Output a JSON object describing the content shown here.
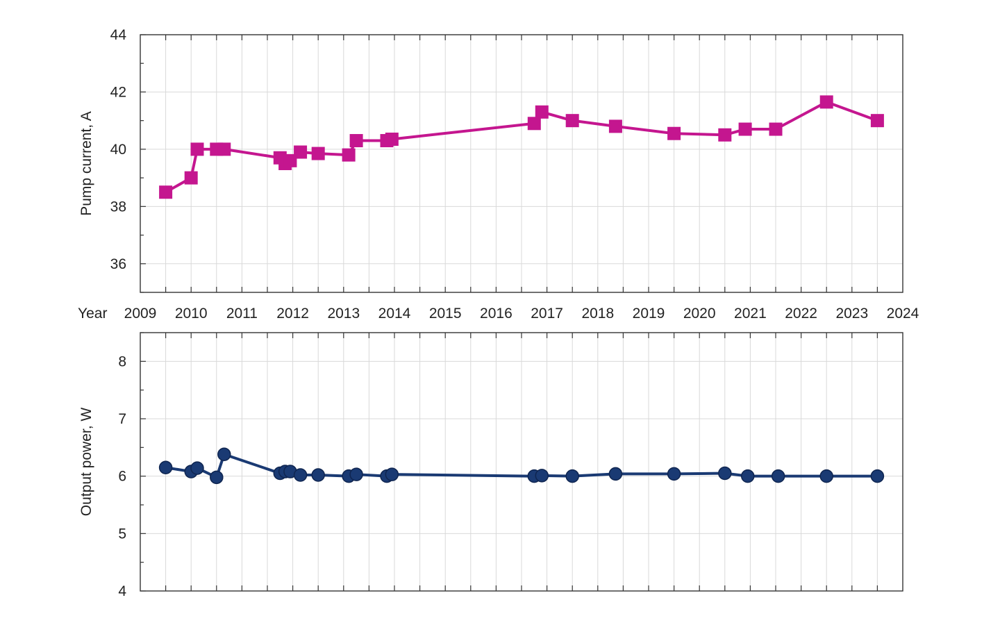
{
  "chart_data": [
    {
      "type": "line",
      "ylabel": "Pump current, A",
      "ylim": [
        35,
        44
      ],
      "yticks": [
        36,
        38,
        40,
        42,
        44
      ],
      "xlim": [
        2009,
        2024
      ],
      "xlabel": "Year",
      "xticks": [
        "2009",
        "2010",
        "2011",
        "2012",
        "2013",
        "2014",
        "2015",
        "2016",
        "2017",
        "2018",
        "2019",
        "2020",
        "2021",
        "2022",
        "2023",
        "2024"
      ],
      "grid": true,
      "series": [
        {
          "color": "#c4168f",
          "marker": "square",
          "x": [
            2009.5,
            2010.0,
            2010.12,
            2010.5,
            2010.65,
            2011.75,
            2011.85,
            2011.95,
            2012.15,
            2012.5,
            2013.1,
            2013.25,
            2013.85,
            2013.95,
            2016.75,
            2016.9,
            2017.5,
            2018.35,
            2019.5,
            2020.5,
            2020.9,
            2021.5,
            2022.5,
            2023.5
          ],
          "y": [
            38.5,
            39.0,
            40.0,
            40.0,
            40.0,
            39.7,
            39.5,
            39.6,
            39.9,
            39.85,
            39.8,
            40.3,
            40.3,
            40.35,
            40.9,
            41.3,
            41.0,
            40.8,
            40.55,
            40.5,
            40.7,
            40.7,
            41.65,
            41.0
          ]
        }
      ]
    },
    {
      "type": "line",
      "ylabel": "Output power, W",
      "ylim": [
        4,
        8.5
      ],
      "yticks": [
        4,
        5,
        6,
        7,
        8
      ],
      "xlim": [
        2009,
        2024
      ],
      "grid": true,
      "series": [
        {
          "color": "#1a3a73",
          "marker": "circle",
          "x": [
            2009.5,
            2010.0,
            2010.12,
            2010.5,
            2010.65,
            2011.75,
            2011.85,
            2011.95,
            2012.15,
            2012.5,
            2013.1,
            2013.25,
            2013.85,
            2013.95,
            2016.75,
            2016.9,
            2017.5,
            2018.35,
            2019.5,
            2020.5,
            2020.95,
            2021.55,
            2022.5,
            2023.5
          ],
          "y": [
            6.15,
            6.08,
            6.14,
            5.98,
            6.38,
            6.05,
            6.08,
            6.08,
            6.02,
            6.02,
            6.0,
            6.03,
            6.0,
            6.03,
            6.0,
            6.01,
            6.0,
            6.04,
            6.04,
            6.05,
            6.0,
            6.0,
            6.0,
            6.0
          ]
        }
      ]
    }
  ]
}
